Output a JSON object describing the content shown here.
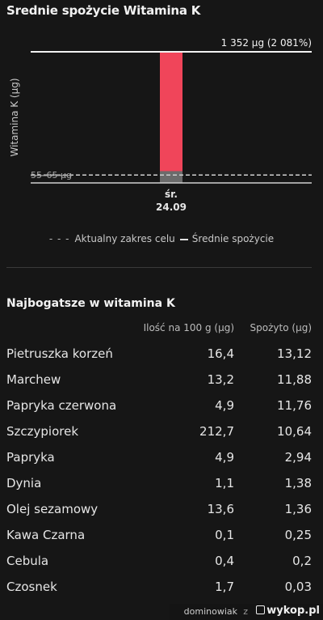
{
  "chart_data": {
    "type": "bar",
    "title": "Srednie spożycie Witamina K",
    "ylabel": "Witamina K (µg)",
    "xlabel": "",
    "categories": [
      "śr.\n24.09"
    ],
    "category_lines": [
      "śr.",
      "24.09"
    ],
    "values": [
      1352
    ],
    "value_label": "1 352 µg (2 081%)",
    "target_range": [
      55,
      65
    ],
    "target_label": "55–65 µg",
    "ylim": [
      0,
      1352
    ],
    "grid": false,
    "legend_position": "bottom",
    "legend": {
      "target": "Aktualny zakres celu",
      "average": "Średnie spożycie"
    },
    "colors": {
      "bar": "#f0455a",
      "bar_base": "#6b6b6b",
      "top_line": "#f2f2f2",
      "target": "#d0d0d0"
    }
  },
  "table": {
    "title": "Najbogatsze w witamina K",
    "columns": [
      "Ilość na 100 g (µg)",
      "Spożyto (µg)"
    ],
    "rows": [
      {
        "name": "Pietruszka korzeń",
        "amount": "16,4",
        "consumed": "13,12"
      },
      {
        "name": "Marchew",
        "amount": "13,2",
        "consumed": "11,88"
      },
      {
        "name": "Papryka czerwona",
        "amount": "4,9",
        "consumed": "11,76"
      },
      {
        "name": "Szczypiorek",
        "amount": "212,7",
        "consumed": "10,64"
      },
      {
        "name": "Papryka",
        "amount": "4,9",
        "consumed": "2,94"
      },
      {
        "name": "Dynia",
        "amount": "1,1",
        "consumed": "1,38"
      },
      {
        "name": "Olej sezamowy",
        "amount": "13,6",
        "consumed": "1,36"
      },
      {
        "name": "Kawa Czarna",
        "amount": "0,1",
        "consumed": "0,25"
      },
      {
        "name": "Cebula",
        "amount": "0,4",
        "consumed": "0,2"
      },
      {
        "name": "Czosnek",
        "amount": "1,7",
        "consumed": "0,03"
      }
    ]
  },
  "footer": {
    "user": "dominowiak",
    "z": "z",
    "site": "wykop.pl"
  }
}
